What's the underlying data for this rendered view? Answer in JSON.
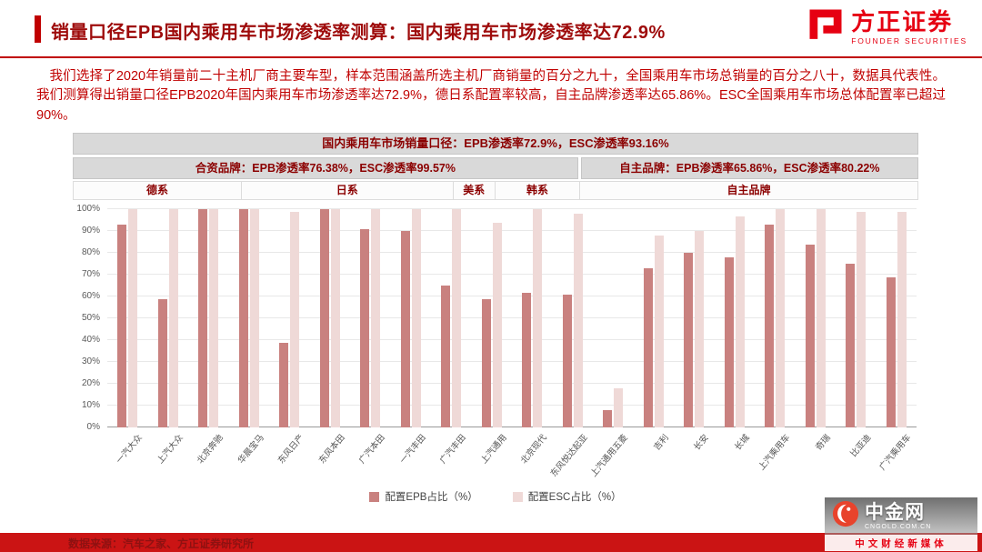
{
  "page": {
    "title": "销量口径EPB国内乘用车市场渗透率测算：国内乘用车市场渗透率达72.9%"
  },
  "logo": {
    "name": "方正证券",
    "subtitle": "FOUNDER SECURITIES"
  },
  "intro": "我们选择了2020年销量前二十主机厂商主要车型，样本范围涵盖所选主机厂商销量的百分之九十，全国乘用车市场总销量的百分之八十，数据具代表性。我们测算得出销量口径EPB2020年国内乘用车市场渗透率达72.9%，德日系配置率较高，自主品牌渗透率达65.86%。ESC全国乘用车市场总体配置率已超过90%。",
  "table": {
    "overall": "国内乘用车市场销量口径：EPB渗透率72.9%，ESC渗透率93.16%",
    "joint_venture": "合资品牌：EPB渗透率76.38%，ESC渗透率99.57%",
    "domestic": "自主品牌：EPB渗透率65.86%，ESC渗透率80.22%",
    "groups": [
      {
        "label": "德系",
        "span": 4
      },
      {
        "label": "日系",
        "span": 5
      },
      {
        "label": "美系",
        "span": 1
      },
      {
        "label": "韩系",
        "span": 2
      },
      {
        "label": "自主品牌",
        "span": 8
      }
    ]
  },
  "chart_data": {
    "type": "bar",
    "title": "国内乘用车市场销量口径：EPB渗透率72.9%，ESC渗透率93.16%",
    "categories": [
      "一汽大众",
      "上汽大众",
      "北京奔驰",
      "华晨宝马",
      "东风日产",
      "东风本田",
      "广汽本田",
      "一汽丰田",
      "广汽丰田",
      "上汽通用",
      "北京现代",
      "东风悦达起亚",
      "上汽通用五菱",
      "吉利",
      "长安",
      "长城",
      "上汽乘用车",
      "奇瑞",
      "比亚迪",
      "广汽乘用车"
    ],
    "series": [
      {
        "name": "配置EPB占比（%）",
        "color": "#c9817f",
        "values": [
          93,
          59,
          100,
          100,
          39,
          100,
          91,
          90,
          65,
          59,
          62,
          61,
          8,
          73,
          80,
          78,
          93,
          84,
          75,
          69
        ]
      },
      {
        "name": "配置ESC占比（%）",
        "color": "#efd9d7",
        "values": [
          100,
          100,
          100,
          100,
          99,
          100,
          100,
          100,
          100,
          94,
          100,
          98,
          18,
          88,
          90,
          97,
          100,
          100,
          99,
          99
        ]
      }
    ],
    "xlabel": "",
    "ylabel": "",
    "ylim": [
      0,
      100
    ],
    "ytick_step": 10,
    "grid": true,
    "legend_position": "bottom"
  },
  "footer": {
    "source": "数据来源：汽车之家、方正证券研究所"
  },
  "watermark": {
    "name": "中金网",
    "domain": "CNGOLD.COM.CN",
    "tagline": "中文财经新媒体"
  },
  "colors": {
    "brand_red": "#e60012",
    "title_red": "#9e0b0b",
    "body_red": "#c00000",
    "table_text_red": "#8b0000",
    "table_bg_gray": "#d9d9d9",
    "footer_bar_red": "#cb1414",
    "epb_bar": "#c9817f",
    "esc_bar": "#efd9d7"
  }
}
